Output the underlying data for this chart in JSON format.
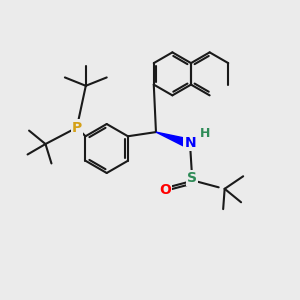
{
  "bg_color": "#ebebeb",
  "bond_color": "#1a1a1a",
  "P_color": "#d4a017",
  "N_color": "#0000ff",
  "S_color": "#2e8b57",
  "O_color": "#ff0000",
  "H_color": "#2e8b57",
  "lw": 1.5,
  "figsize": [
    3.0,
    3.0
  ],
  "dpi": 100,
  "xlim": [
    0,
    10
  ],
  "ylim": [
    0,
    10
  ]
}
